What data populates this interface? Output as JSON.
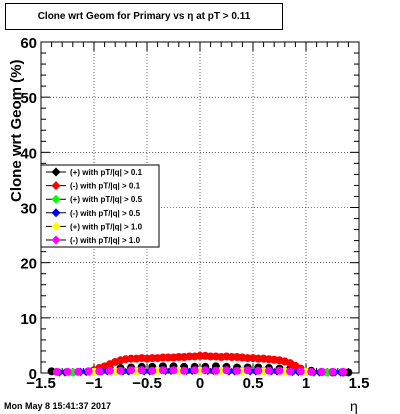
{
  "header": {
    "title": "Clone wrt Geom for Primary vs   η at pT > 0.11"
  },
  "footer": {
    "timestamp": "Mon May  8 15:41:37 2017"
  },
  "chart_data": {
    "type": "scatter",
    "title": "Clone wrt Geom for Primary vs   η at pT > 0.11",
    "xlabel": "η",
    "ylabel": "Clone wrt Geom (%)",
    "xlim": [
      -1.5,
      1.5
    ],
    "ylim": [
      0,
      60
    ],
    "x_ticks": [
      -1.5,
      -1,
      -0.5,
      0,
      0.5,
      1,
      1.5
    ],
    "x_tick_labels": [
      "−1.5",
      "−1",
      "−0.5",
      "0",
      "0.5",
      "1",
      "1.5"
    ],
    "y_ticks": [
      0,
      10,
      20,
      30,
      40,
      50,
      60
    ],
    "y_tick_labels": [
      "0",
      "10",
      "20",
      "30",
      "40",
      "50",
      "60"
    ],
    "grid": true,
    "legend_position": "middle-left",
    "series": [
      {
        "name": "(+) with pT/|q| > 0.1",
        "color": "#000000",
        "x": [
          -1.4,
          -1.05,
          -0.95,
          -0.85,
          -0.75,
          -0.65,
          -0.55,
          -0.45,
          -0.35,
          -0.25,
          -0.15,
          -0.05,
          0.05,
          0.15,
          0.25,
          0.35,
          0.45,
          0.55,
          0.65,
          0.75,
          0.85,
          0.95,
          1.05,
          1.15,
          1.25,
          1.35,
          1.4
        ],
        "y": [
          0.3,
          0.3,
          0.5,
          0.8,
          0.9,
          1.0,
          1.1,
          1.1,
          1.2,
          1.2,
          1.1,
          1.1,
          1.1,
          1.2,
          1.1,
          1.0,
          1.0,
          1.0,
          0.9,
          0.8,
          0.7,
          0.6,
          0.4,
          0.2,
          0.1,
          0.1,
          0.1
        ]
      },
      {
        "name": "(-) with pT/|q| > 0.1",
        "color": "#ff0000",
        "x": [
          -1.0,
          -0.95,
          -0.9,
          -0.85,
          -0.8,
          -0.75,
          -0.7,
          -0.65,
          -0.6,
          -0.55,
          -0.5,
          -0.45,
          -0.4,
          -0.35,
          -0.3,
          -0.25,
          -0.2,
          -0.15,
          -0.1,
          -0.05,
          0.0,
          0.05,
          0.1,
          0.15,
          0.2,
          0.25,
          0.3,
          0.35,
          0.4,
          0.45,
          0.5,
          0.55,
          0.6,
          0.65,
          0.7,
          0.75,
          0.8,
          0.85,
          0.9,
          0.95
        ],
        "y": [
          0.5,
          0.9,
          1.2,
          1.6,
          2.0,
          2.3,
          2.5,
          2.6,
          2.6,
          2.7,
          2.6,
          2.7,
          2.7,
          2.8,
          2.8,
          2.8,
          2.9,
          2.9,
          3.0,
          3.0,
          3.1,
          3.1,
          3.0,
          3.0,
          2.9,
          3.0,
          2.9,
          2.9,
          2.8,
          2.7,
          2.7,
          2.6,
          2.6,
          2.5,
          2.4,
          2.3,
          2.1,
          1.8,
          1.3,
          0.8
        ]
      },
      {
        "name": "(+) with pT/|q| > 0.5",
        "color": "#00ff00",
        "x": [
          -1.2,
          -1.0,
          -0.8,
          -0.6,
          -0.4,
          -0.2,
          0.0,
          0.2,
          0.4,
          0.6,
          0.8,
          1.0,
          1.2
        ],
        "y": [
          0.1,
          0.2,
          0.3,
          0.4,
          0.4,
          0.4,
          0.4,
          0.4,
          0.4,
          0.4,
          0.3,
          0.2,
          0.1
        ]
      },
      {
        "name": "(-) with pT/|q| > 0.5",
        "color": "#0000ff",
        "x": [
          -1.3,
          -1.1,
          -0.9,
          -0.7,
          -0.5,
          -0.3,
          -0.1,
          0.1,
          0.3,
          0.5,
          0.7,
          0.9,
          1.1,
          1.3
        ],
        "y": [
          0.1,
          0.2,
          0.3,
          0.3,
          0.3,
          0.4,
          0.4,
          0.4,
          0.3,
          0.3,
          0.3,
          0.2,
          0.1,
          0.1
        ]
      },
      {
        "name": "(+) with pT/|q| > 1.0",
        "color": "#ffff00",
        "x": [
          -1.0,
          -0.8,
          -0.6,
          -0.4,
          -0.2,
          0.0,
          0.2,
          0.4,
          0.6,
          0.8,
          1.0
        ],
        "y": [
          0.2,
          0.3,
          0.3,
          0.4,
          0.4,
          0.4,
          0.4,
          0.3,
          0.3,
          0.2,
          0.2
        ]
      },
      {
        "name": "(-) with pT/|q| > 1.0",
        "color": "#ff00ff",
        "x": [
          -1.35,
          -1.25,
          -1.15,
          -1.05,
          -0.95,
          -0.85,
          -0.75,
          -0.65,
          -0.55,
          -0.45,
          -0.35,
          -0.25,
          -0.15,
          -0.05,
          0.05,
          0.15,
          0.25,
          0.35,
          0.45,
          0.55,
          0.65,
          0.75,
          0.85,
          0.95,
          1.05,
          1.15,
          1.25,
          1.35
        ],
        "y": [
          0.2,
          0.2,
          0.2,
          0.3,
          0.3,
          0.4,
          0.4,
          0.5,
          0.5,
          0.4,
          0.5,
          0.5,
          0.4,
          0.5,
          0.5,
          0.4,
          0.5,
          0.4,
          0.5,
          0.4,
          0.4,
          0.4,
          0.3,
          0.3,
          0.2,
          0.2,
          0.2,
          0.2
        ]
      }
    ]
  }
}
